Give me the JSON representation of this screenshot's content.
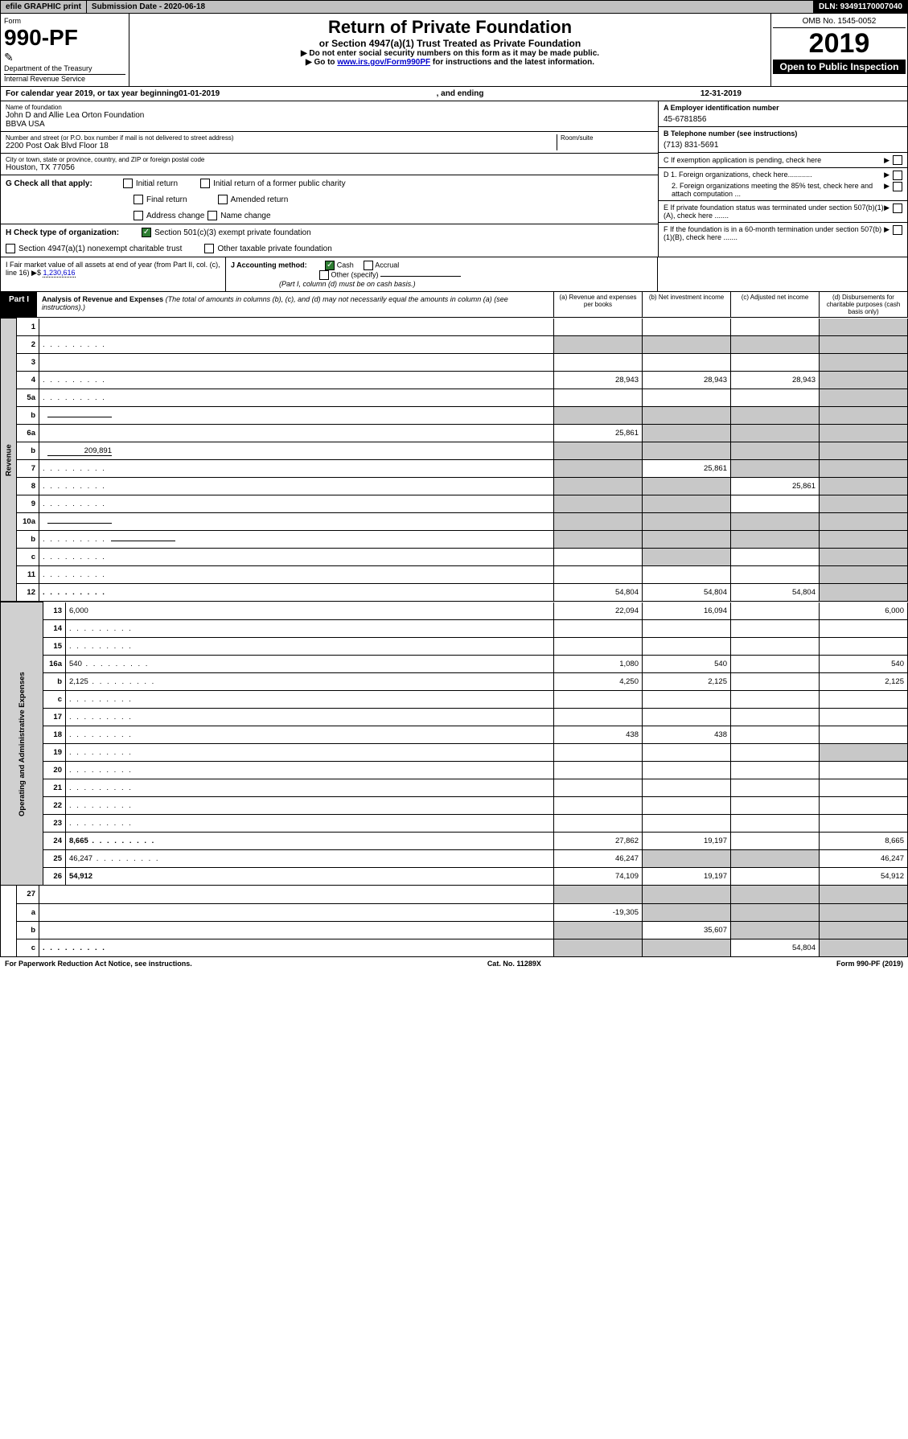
{
  "topbar": {
    "efile": "efile GRAPHIC print",
    "subdate_label": "Submission Date - 2020-06-18",
    "dln": "DLN: 93491170007040"
  },
  "header": {
    "form_label": "Form",
    "form_no": "990-PF",
    "dept1": "Department of the Treasury",
    "dept2": "Internal Revenue Service",
    "title": "Return of Private Foundation",
    "subtitle": "or Section 4947(a)(1) Trust Treated as Private Foundation",
    "note1": "▶ Do not enter social security numbers on this form as it may be made public.",
    "note2_pre": "▶ Go to ",
    "note2_link": "www.irs.gov/Form990PF",
    "note2_post": " for instructions and the latest information.",
    "omb": "OMB No. 1545-0052",
    "year": "2019",
    "open": "Open to Public Inspection"
  },
  "cal": {
    "pre": "For calendar year 2019, or tax year beginning ",
    "begin": "01-01-2019",
    "mid": ", and ending ",
    "end": "12-31-2019"
  },
  "left": {
    "name_label": "Name of foundation",
    "name": "John D and Allie Lea Orton Foundation\nBBVA USA",
    "addr_label": "Number and street (or P.O. box number if mail is not delivered to street address)",
    "addr": "2200 Post Oak Blvd Floor 18",
    "room_label": "Room/suite",
    "city_label": "City or town, state or province, country, and ZIP or foreign postal code",
    "city": "Houston, TX  77056"
  },
  "right": {
    "a_label": "A Employer identification number",
    "a_val": "45-6781856",
    "b_label": "B Telephone number (see instructions)",
    "b_val": "(713) 831-5691",
    "c_label": "C If exemption application is pending, check here",
    "d1": "D 1. Foreign organizations, check here............",
    "d2": "2. Foreign organizations meeting the 85% test, check here and attach computation ...",
    "e": "E  If private foundation status was terminated under section 507(b)(1)(A), check here .......",
    "f": "F  If the foundation is in a 60-month termination under section 507(b)(1)(B), check here ......."
  },
  "g": {
    "label": "G Check all that apply:",
    "opts": [
      "Initial return",
      "Initial return of a former public charity",
      "Final return",
      "Amended return",
      "Address change",
      "Name change"
    ]
  },
  "h": {
    "label": "H Check type of organization:",
    "o1": "Section 501(c)(3) exempt private foundation",
    "o2": "Section 4947(a)(1) nonexempt charitable trust",
    "o3": "Other taxable private foundation"
  },
  "i": {
    "label": "I Fair market value of all assets at end of year (from Part II, col. (c), line 16) ▶$ ",
    "val": "1,230,616"
  },
  "j": {
    "label": "J Accounting method:",
    "o1": "Cash",
    "o2": "Accrual",
    "o3": "Other (specify)",
    "note": "(Part I, column (d) must be on cash basis.)"
  },
  "part1": {
    "tab": "Part I",
    "title": "Analysis of Revenue and Expenses",
    "sub": " (The total of amounts in columns (b), (c), and (d) may not necessarily equal the amounts in column (a) (see instructions).)",
    "cols": {
      "a": "(a)   Revenue and expenses per books",
      "b": "(b)   Net investment income",
      "c": "(c)   Adjusted net income",
      "d": "(d)   Disbursements for charitable purposes (cash basis only)"
    }
  },
  "vtabs": {
    "rev": "Revenue",
    "exp": "Operating and Administrative Expenses"
  },
  "rows": [
    {
      "n": "1",
      "d": "",
      "a": "",
      "b": "",
      "c": "",
      "dg": true
    },
    {
      "n": "2",
      "d": "",
      "a": "",
      "b": "",
      "c": "",
      "dots": true,
      "dg": true,
      "ag": true,
      "bg": true,
      "cg": true
    },
    {
      "n": "3",
      "d": "",
      "a": "",
      "b": "",
      "c": "",
      "dg": true
    },
    {
      "n": "4",
      "d": "",
      "a": "28,943",
      "b": "28,943",
      "c": "28,943",
      "dots": true,
      "dg": true
    },
    {
      "n": "5a",
      "d": "",
      "a": "",
      "b": "",
      "c": "",
      "dots": true,
      "dg": true
    },
    {
      "n": "b",
      "d": "",
      "a": "",
      "b": "",
      "c": "",
      "ag": true,
      "bg": true,
      "cg": true,
      "dg": true,
      "inline": true
    },
    {
      "n": "6a",
      "d": "",
      "a": "25,861",
      "b": "",
      "c": "",
      "bg": true,
      "cg": true,
      "dg": true
    },
    {
      "n": "b",
      "d": "",
      "a": "",
      "b": "",
      "c": "",
      "inline": true,
      "inlineval": "209,891",
      "ag": true,
      "bg": true,
      "cg": true,
      "dg": true
    },
    {
      "n": "7",
      "d": "",
      "a": "",
      "b": "25,861",
      "c": "",
      "dots": true,
      "ag": true,
      "cg": true,
      "dg": true
    },
    {
      "n": "8",
      "d": "",
      "a": "",
      "b": "",
      "c": "25,861",
      "dots": true,
      "ag": true,
      "bg": true,
      "dg": true
    },
    {
      "n": "9",
      "d": "",
      "a": "",
      "b": "",
      "c": "",
      "dots": true,
      "ag": true,
      "bg": true,
      "dg": true
    },
    {
      "n": "10a",
      "d": "",
      "a": "",
      "b": "",
      "c": "",
      "inline": true,
      "ag": true,
      "bg": true,
      "cg": true,
      "dg": true
    },
    {
      "n": "b",
      "d": "",
      "a": "",
      "b": "",
      "c": "",
      "dots": true,
      "inline": true,
      "ag": true,
      "bg": true,
      "cg": true,
      "dg": true
    },
    {
      "n": "c",
      "d": "",
      "a": "",
      "b": "",
      "c": "",
      "dots": true,
      "bg": true,
      "dg": true
    },
    {
      "n": "11",
      "d": "",
      "a": "",
      "b": "",
      "c": "",
      "dots": true,
      "dg": true
    },
    {
      "n": "12",
      "d": "",
      "a": "54,804",
      "b": "54,804",
      "c": "54,804",
      "dots": true,
      "bold": true,
      "dg": true
    }
  ],
  "exprows": [
    {
      "n": "13",
      "d": "6,000",
      "a": "22,094",
      "b": "16,094",
      "c": ""
    },
    {
      "n": "14",
      "d": "",
      "a": "",
      "b": "",
      "c": "",
      "dots": true
    },
    {
      "n": "15",
      "d": "",
      "a": "",
      "b": "",
      "c": "",
      "dots": true
    },
    {
      "n": "16a",
      "d": "540",
      "a": "1,080",
      "b": "540",
      "c": "",
      "dots": true
    },
    {
      "n": "b",
      "d": "2,125",
      "a": "4,250",
      "b": "2,125",
      "c": "",
      "dots": true
    },
    {
      "n": "c",
      "d": "",
      "a": "",
      "b": "",
      "c": "",
      "dots": true
    },
    {
      "n": "17",
      "d": "",
      "a": "",
      "b": "",
      "c": "",
      "dots": true
    },
    {
      "n": "18",
      "d": "",
      "a": "438",
      "b": "438",
      "c": "",
      "dots": true
    },
    {
      "n": "19",
      "d": "",
      "a": "",
      "b": "",
      "c": "",
      "dots": true,
      "dg": true
    },
    {
      "n": "20",
      "d": "",
      "a": "",
      "b": "",
      "c": "",
      "dots": true
    },
    {
      "n": "21",
      "d": "",
      "a": "",
      "b": "",
      "c": "",
      "dots": true
    },
    {
      "n": "22",
      "d": "",
      "a": "",
      "b": "",
      "c": "",
      "dots": true
    },
    {
      "n": "23",
      "d": "",
      "a": "",
      "b": "",
      "c": "",
      "dots": true
    },
    {
      "n": "24",
      "d": "8,665",
      "a": "27,862",
      "b": "19,197",
      "c": "",
      "dots": true,
      "bold": true
    },
    {
      "n": "25",
      "d": "46,247",
      "a": "46,247",
      "b": "",
      "c": "",
      "dots": true,
      "bg": true,
      "cg": true
    },
    {
      "n": "26",
      "d": "54,912",
      "a": "74,109",
      "b": "19,197",
      "c": "",
      "bold": true
    }
  ],
  "row27": [
    {
      "n": "27",
      "d": "",
      "a": "",
      "b": "",
      "c": "",
      "ag": true,
      "bg": true,
      "cg": true,
      "dg": true
    },
    {
      "n": "a",
      "d": "",
      "a": "-19,305",
      "b": "",
      "c": "",
      "bold": true,
      "bg": true,
      "cg": true,
      "dg": true
    },
    {
      "n": "b",
      "d": "",
      "a": "",
      "b": "35,607",
      "c": "",
      "bold": true,
      "ag": true,
      "cg": true,
      "dg": true
    },
    {
      "n": "c",
      "d": "",
      "a": "",
      "b": "",
      "c": "54,804",
      "bold": true,
      "dots": true,
      "ag": true,
      "bg": true,
      "dg": true
    }
  ],
  "footer": {
    "l": "For Paperwork Reduction Act Notice, see instructions.",
    "c": "Cat. No. 11289X",
    "r": "Form 990-PF (2019)"
  }
}
